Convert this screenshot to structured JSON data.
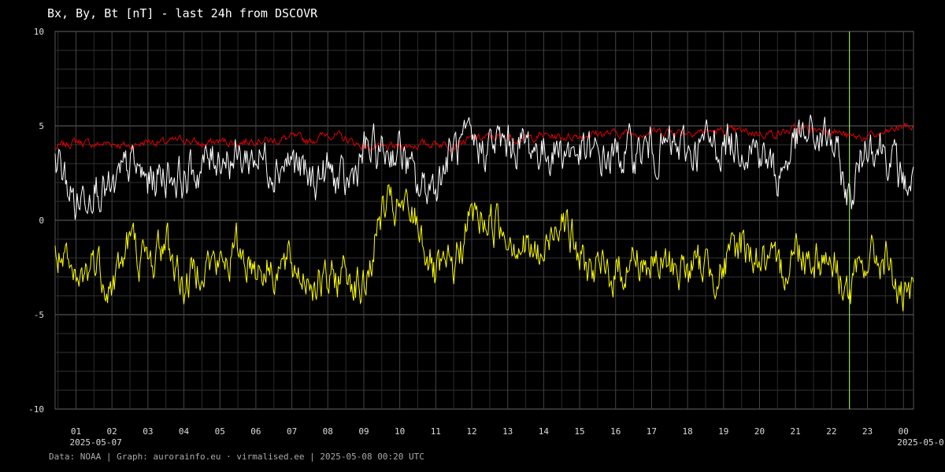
{
  "chart_data": {
    "type": "line",
    "title": "Bx, By, Bt [nT] - last 24h from DSCOVR",
    "ylim": [
      -10,
      10
    ],
    "y_ticks": [
      10,
      5,
      0,
      -5,
      -10
    ],
    "x_ticks": [
      "01",
      "02",
      "03",
      "04",
      "05",
      "06",
      "07",
      "08",
      "09",
      "10",
      "11",
      "12",
      "13",
      "14",
      "15",
      "16",
      "17",
      "18",
      "19",
      "20",
      "21",
      "22",
      "23",
      "00"
    ],
    "date_labels": [
      {
        "tick": "01",
        "text": "2025-05-07"
      },
      {
        "tick": "00",
        "text": "2025-05-0"
      }
    ],
    "x_range_hours": [
      0.42,
      24.28
    ],
    "marker_hour": 22.5,
    "grid": true,
    "series": [
      {
        "color": "#e00000",
        "x": [
          0.42,
          1,
          1.5,
          2,
          2.5,
          3,
          3.5,
          4,
          4.5,
          5,
          5.5,
          6,
          6.5,
          7,
          7.5,
          8,
          8.5,
          9,
          9.5,
          10,
          10.5,
          11,
          11.5,
          12,
          12.5,
          13,
          13.5,
          14,
          14.5,
          15,
          15.5,
          16,
          16.5,
          17,
          17.5,
          18,
          18.5,
          19,
          19.5,
          20,
          20.5,
          21,
          21.5,
          22,
          22.5,
          23,
          23.5,
          24,
          24.28
        ],
        "values": [
          3.8,
          4.2,
          4.0,
          4.1,
          3.9,
          4.2,
          4.1,
          4.3,
          4.0,
          4.2,
          4.1,
          4.3,
          4.2,
          4.4,
          4.2,
          4.6,
          4.3,
          3.9,
          3.8,
          3.9,
          4.0,
          4.1,
          4.0,
          4.3,
          4.4,
          4.4,
          4.3,
          4.5,
          4.4,
          4.5,
          4.6,
          4.6,
          4.6,
          4.7,
          4.7,
          4.7,
          4.7,
          4.7,
          4.7,
          4.6,
          4.6,
          4.8,
          4.8,
          4.8,
          4.4,
          4.4,
          4.6,
          5.0,
          4.9
        ]
      },
      {
        "color": "#ffffff",
        "x": [
          0.42,
          1,
          1.5,
          2,
          2.5,
          3,
          3.5,
          4,
          4.5,
          5,
          5.5,
          6,
          6.5,
          7,
          7.5,
          8,
          8.5,
          9,
          9.5,
          10,
          10.5,
          11,
          11.5,
          12,
          12.5,
          13,
          13.5,
          14,
          14.5,
          15,
          15.5,
          16,
          16.5,
          17,
          17.5,
          18,
          18.5,
          19,
          19.5,
          20,
          20.5,
          21,
          21.5,
          22,
          22.5,
          23,
          23.5,
          24,
          24.28
        ],
        "values": [
          3.4,
          0.8,
          2.2,
          1.2,
          3.0,
          2.0,
          2.6,
          2.2,
          2.8,
          3.6,
          3.2,
          3.4,
          3.0,
          3.2,
          2.0,
          2.6,
          1.6,
          3.6,
          3.6,
          3.8,
          1.6,
          2.0,
          3.8,
          3.8,
          4.0,
          4.0,
          4.0,
          3.6,
          3.8,
          3.6,
          3.2,
          3.4,
          3.6,
          3.8,
          3.8,
          3.6,
          4.0,
          4.0,
          4.2,
          3.8,
          2.2,
          4.2,
          4.4,
          4.2,
          1.0,
          4.4,
          3.8,
          2.0,
          2.0
        ]
      },
      {
        "color": "#ffff00",
        "x": [
          0.42,
          1,
          1.5,
          2,
          2.5,
          3,
          3.5,
          4,
          4.5,
          5,
          5.5,
          6,
          6.5,
          7,
          7.5,
          8,
          8.5,
          9,
          9.5,
          10,
          10.5,
          11,
          11.5,
          12,
          12.5,
          13,
          13.5,
          14,
          14.5,
          15,
          15.5,
          16,
          16.5,
          17,
          17.5,
          18,
          18.5,
          19,
          19.5,
          20,
          20.5,
          21,
          21.5,
          22,
          22.5,
          23,
          23.5,
          24,
          24.28
        ],
        "values": [
          -1.5,
          -3.8,
          -2.0,
          -3.5,
          -1.0,
          -2.5,
          -1.0,
          -3.6,
          -2.0,
          -2.5,
          -1.5,
          -2.4,
          -2.5,
          -2.5,
          -3.0,
          -3.5,
          -2.5,
          -3.8,
          0.5,
          0.5,
          0.0,
          -3.2,
          -2.5,
          0.3,
          0.0,
          -0.5,
          -1.5,
          -2.0,
          0.8,
          -2.2,
          -2.8,
          -2.8,
          -2.0,
          -2.4,
          -2.4,
          -2.6,
          -2.4,
          -2.6,
          -1.2,
          -2.0,
          -3.0,
          -1.5,
          -1.8,
          -2.0,
          -4.0,
          -2.0,
          -2.0,
          -4.5,
          -4.2
        ]
      }
    ]
  },
  "footer": "Data: NOAA | Graph: aurorainfo.eu · virmalised.ee | 2025-05-08 00:20 UTC"
}
